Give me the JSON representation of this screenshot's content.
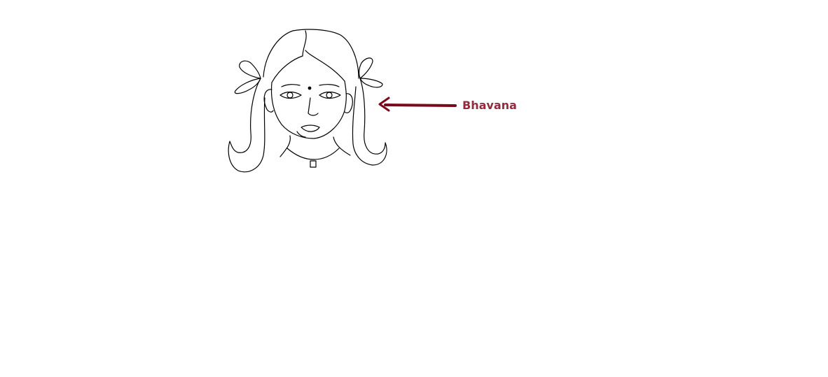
{
  "label": {
    "text": "Bhavana",
    "color": "#922b3e"
  },
  "arrow": {
    "color": "#7a0a1a"
  },
  "sketch": {
    "subject": "girl-with-pigtails-drawing",
    "stroke_color": "#000000"
  }
}
